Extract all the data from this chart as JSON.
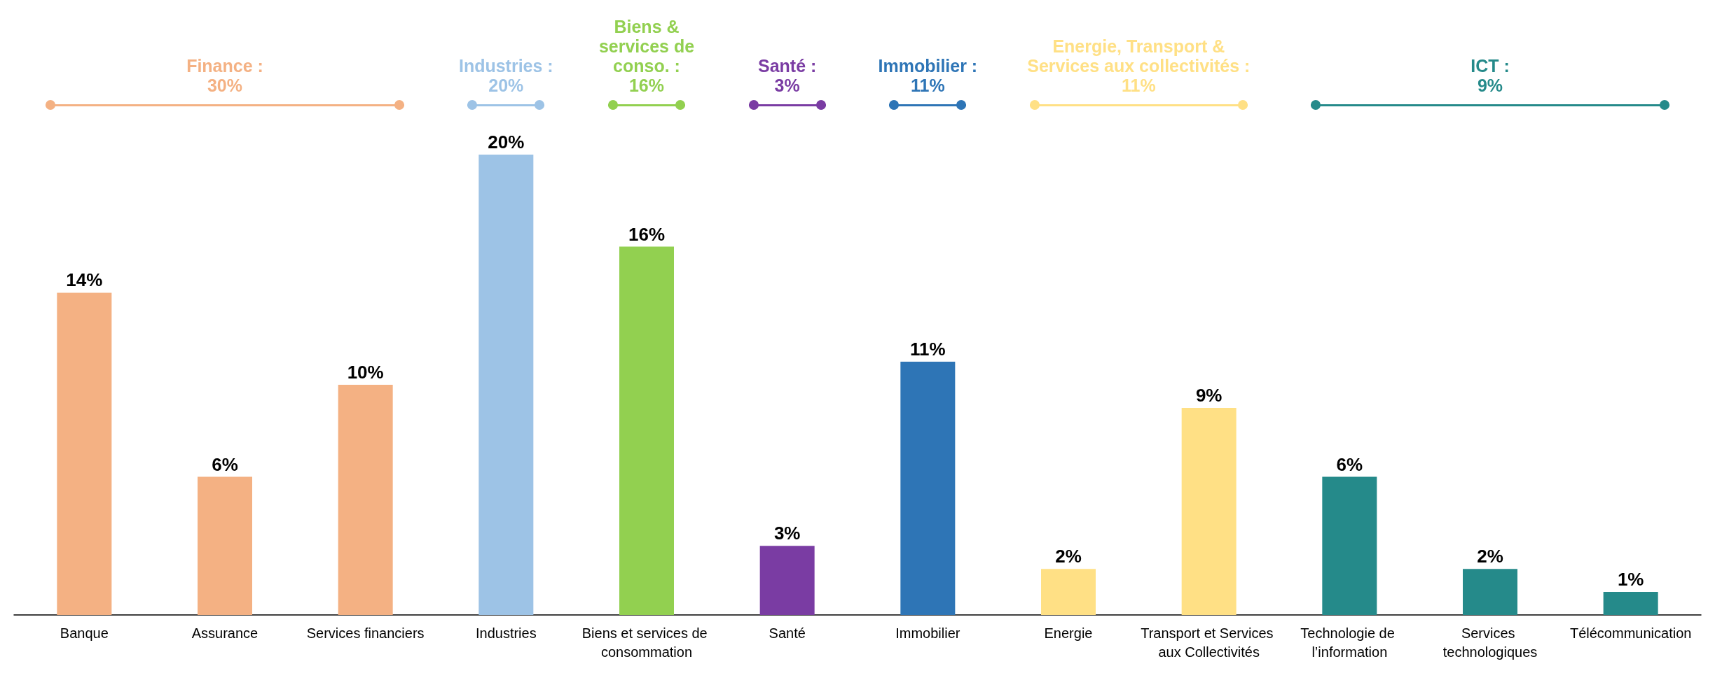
{
  "chart_data": {
    "type": "bar",
    "categories": [
      "Banque",
      "Assurance",
      "Services financiers",
      "Industries",
      "Biens et services de consommation",
      "Santé",
      "Immobilier",
      "Energie",
      "Transport et Services aux Collectivités",
      "Technologie de l’information",
      "Services technologiques",
      "Télécommunication"
    ],
    "values": [
      14,
      6,
      10,
      20,
      16,
      3,
      11,
      2,
      9,
      6,
      2,
      1
    ],
    "colors": [
      "#f4b183",
      "#f4b183",
      "#f4b183",
      "#9dc3e6",
      "#92d050",
      "#7a3ca3",
      "#2e75b6",
      "#ffe085",
      "#ffe085",
      "#258a8a",
      "#258a8a",
      "#258a8a"
    ],
    "value_labels": [
      "14%",
      "6%",
      "10%",
      "20%",
      "16%",
      "3%",
      "11%",
      "2%",
      "9%",
      "6%",
      "2%",
      "1%"
    ],
    "annotations": [
      "Finance :\n30%",
      "Industries :\n20%",
      "Biens &\nservices de\nconso. :\n16%",
      "Santé :\n3%",
      "Immobilier :\n11%",
      "Energie, Transport &\nServices aux collectivités :\n11%",
      "ICT :\n9%"
    ]
  }
}
